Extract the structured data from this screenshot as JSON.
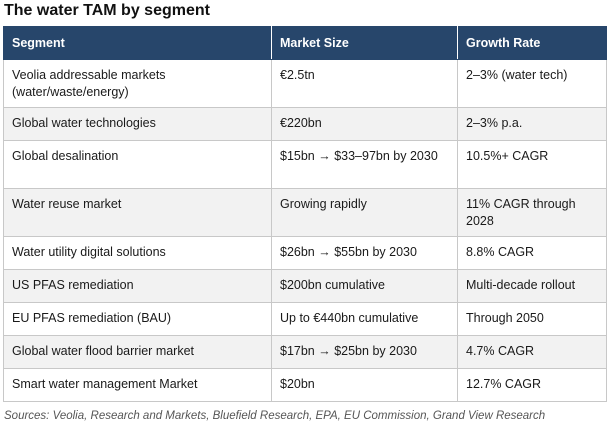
{
  "title": "The water TAM by segment",
  "table": {
    "headers": [
      "Segment",
      "Market Size",
      "Growth Rate"
    ],
    "rows": [
      [
        "Veolia addressable markets (water/waste/energy)",
        "€2.5tn",
        "2–3% (water tech)"
      ],
      [
        "Global water technologies",
        "€220bn",
        "2–3% p.a."
      ],
      [
        "Global desalination",
        "$15bn → $33–97bn by 2030",
        "10.5%+ CAGR"
      ],
      [
        "Water reuse market",
        "Growing rapidly",
        "11% CAGR through 2028"
      ],
      [
        "Water utility digital solutions",
        "$26bn → $55bn by 2030",
        "8.8% CAGR"
      ],
      [
        "US PFAS remediation",
        "$200bn cumulative",
        "Multi-decade rollout"
      ],
      [
        "EU PFAS remediation (BAU)",
        "Up to €440bn cumulative",
        "Through 2050"
      ],
      [
        "Global water flood barrier market",
        "$17bn → $25bn by 2030",
        "4.7% CAGR"
      ],
      [
        "Smart water management Market",
        "$20bn",
        "12.7% CAGR"
      ]
    ]
  },
  "source": "Sources: Veolia, Research and Markets, Bluefield Research, EPA, EU Commission, Grand View Research",
  "colors": {
    "header_bg": "#27466b",
    "header_text": "#ffffff",
    "stripe": "#f2f2f2",
    "border": "#c8c8c8"
  }
}
